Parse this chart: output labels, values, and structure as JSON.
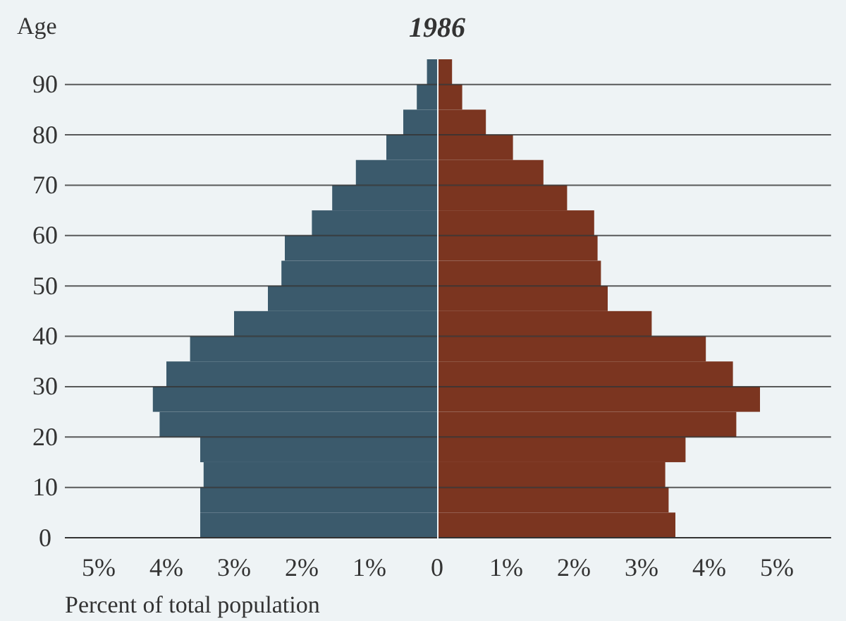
{
  "chart_data": [
    {
      "type": "bar",
      "orientation": "horizontal",
      "title": "1986",
      "ylabel": "Age",
      "xlabel": "Percent of total population",
      "x": [
        2.5,
        7.5,
        12.5,
        17.5,
        22.5,
        27.5,
        32.5,
        37.5,
        42.5,
        47.5,
        52.5,
        57.5,
        62.5,
        67.5,
        72.5,
        77.5,
        82.5,
        87.5,
        92.5
      ],
      "series": [
        {
          "color": "#3b5a6c",
          "values": [
            -3.5,
            -3.5,
            -3.45,
            -3.5,
            -4.1,
            -4.2,
            -4.0,
            -3.65,
            -3.0,
            -2.5,
            -2.3,
            -2.25,
            -1.85,
            -1.55,
            -1.2,
            -0.75,
            -0.5,
            -0.3,
            -0.15
          ]
        }
      ],
      "xlim": [
        -5.5,
        0
      ],
      "xticks": [
        {
          "value": -5,
          "label": "5%"
        },
        {
          "value": -4,
          "label": "4%"
        },
        {
          "value": -3,
          "label": "3%"
        },
        {
          "value": -2,
          "label": "2%"
        },
        {
          "value": -1,
          "label": "1%"
        },
        0
      ],
      "ylim": [
        0,
        95
      ],
      "yticks": [
        0,
        10,
        20,
        30,
        40,
        50,
        60,
        70,
        80,
        90
      ],
      "grid": "y"
    },
    {
      "type": "bar",
      "orientation": "horizontal",
      "x": [
        2.5,
        7.5,
        12.5,
        17.5,
        22.5,
        27.5,
        32.5,
        37.5,
        42.5,
        47.5,
        52.5,
        57.5,
        62.5,
        67.5,
        72.5,
        77.5,
        82.5,
        87.5,
        92.5
      ],
      "series": [
        {
          "color": "#7b3520",
          "values": [
            3.5,
            3.4,
            3.35,
            3.65,
            4.4,
            4.75,
            4.35,
            3.95,
            3.15,
            2.5,
            2.4,
            2.35,
            2.3,
            1.9,
            1.55,
            1.1,
            0.7,
            0.35,
            0.2
          ]
        }
      ],
      "xlim": [
        0,
        5.8
      ],
      "xticks": [
        {
          "value": 1,
          "label": "1%"
        },
        {
          "value": 2,
          "label": "2%"
        },
        {
          "value": 3,
          "label": "3%"
        },
        {
          "value": 4,
          "label": "4%"
        },
        {
          "value": 5,
          "label": "5%"
        }
      ],
      "ylim": [
        0,
        95
      ],
      "yticks": [
        0,
        10,
        20,
        30,
        40,
        50,
        60,
        70,
        80,
        90
      ],
      "tick_labels": "x",
      "grid": "y"
    }
  ]
}
